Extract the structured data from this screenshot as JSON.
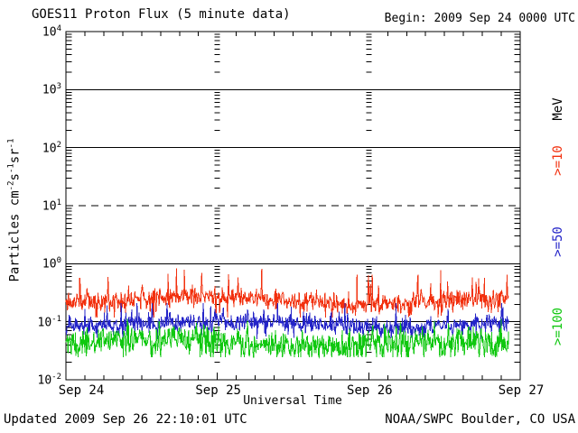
{
  "header": {
    "title": "GOES11 Proton Flux (5 minute data)",
    "begin": "Begin: 2009 Sep 24 0000 UTC"
  },
  "footer": {
    "updated": "Updated 2009 Sep 26 22:10:01 UTC",
    "credit": "NOAA/SWPC Boulder, CO USA"
  },
  "chart_data": {
    "type": "line",
    "title": "GOES11 Proton Flux (5 minute data)",
    "begin_time": "2009 Sep 24 0000 UTC",
    "updated_time": "2009 Sep 26 22:10:01 UTC",
    "x_axis": {
      "label": "Universal Time",
      "tick_labels": [
        "Sep 24",
        "Sep 25",
        "Sep 26",
        "Sep 27"
      ],
      "span_days": 3,
      "minor_tick_hours": 3
    },
    "y_axis": {
      "label_plain": "Particles cm-2 s-1 sr-1",
      "label_parts": [
        {
          "t": "Particles cm"
        },
        {
          "t": "-2",
          "sup": true
        },
        {
          "t": "s"
        },
        {
          "t": "-1",
          "sup": true
        },
        {
          "t": "sr"
        },
        {
          "t": "-1",
          "sup": true
        }
      ],
      "scale": "log",
      "min": 0.01,
      "max": 10000,
      "decade_exponents": [
        4,
        3,
        2,
        1,
        0,
        -1,
        -2
      ]
    },
    "grid_lines": [
      {
        "value_exp": 3,
        "style": "solid"
      },
      {
        "value_exp": 2,
        "style": "solid"
      },
      {
        "value_exp": 1,
        "style": "dashed"
      },
      {
        "value_exp": 0,
        "style": "solid"
      },
      {
        "value_exp": -1,
        "style": "solid"
      }
    ],
    "day_boundary_marks_at_day": [
      1,
      2
    ],
    "legend": {
      "unit": "MeV",
      "entries": [
        {
          "label": ">=10",
          "color": "#f2300e"
        },
        {
          "label": ">=50",
          "color": "#2424c8"
        },
        {
          "label": ">=100",
          "color": "#10c810"
        }
      ]
    },
    "series": [
      {
        "name": "protons_gte_10MeV",
        "label": ">=10 MeV",
        "color": "#f2300e",
        "cadence_minutes": 5,
        "points": 842,
        "duration_days": 2.9236,
        "log10_base": -0.63,
        "log10_noise": 0.12,
        "log10_min": -0.93,
        "log10_max": -0.08,
        "spike_prob": 0.05,
        "spike_amp": 0.28,
        "dip_prob": 0.05,
        "dip_amp": 0.18,
        "seed": 11,
        "approx_flux_range": [
          0.12,
          0.83
        ],
        "approx_flux_typical": 0.23
      },
      {
        "name": "protons_gte_50MeV",
        "label": ">=50 MeV",
        "color": "#2424c8",
        "cadence_minutes": 5,
        "points": 842,
        "duration_days": 2.9236,
        "log10_base": -1.03,
        "log10_noise": 0.11,
        "log10_min": -1.3,
        "log10_max": -0.68,
        "spike_prob": 0.05,
        "spike_amp": 0.2,
        "dip_prob": 0.05,
        "dip_amp": 0.15,
        "seed": 23,
        "approx_flux_range": [
          0.05,
          0.21
        ],
        "approx_flux_typical": 0.09
      },
      {
        "name": "protons_gte_100MeV",
        "label": ">=100 MeV",
        "color": "#10c810",
        "cadence_minutes": 5,
        "points": 842,
        "duration_days": 2.9236,
        "log10_base": -1.36,
        "log10_noise": 0.17,
        "log10_min": -1.61,
        "log10_max": -0.95,
        "spike_prob": 0.06,
        "spike_amp": 0.18,
        "dip_prob": 0.08,
        "dip_amp": 0.2,
        "seed": 37,
        "approx_flux_range": [
          0.025,
          0.11
        ],
        "approx_flux_typical": 0.044
      }
    ]
  }
}
